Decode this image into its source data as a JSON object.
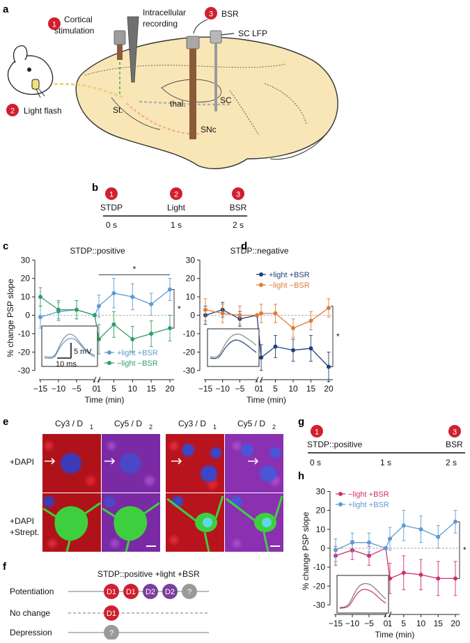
{
  "panel_a": {
    "label": "a",
    "step1_num": "1",
    "step1_text_l1": "Cortical",
    "step1_text_l2": "stimulation",
    "recording_l1": "Intracellular",
    "recording_l2": "recording",
    "step3_num": "3",
    "step3_text": "BSR",
    "sc_lfp": "SC LFP",
    "step2_num": "2",
    "step2_text": "Light flash",
    "region_st": "St.",
    "region_thal": "thal.",
    "region_sc": "SC",
    "region_snc": "SNc"
  },
  "panel_b": {
    "label": "b",
    "events": [
      {
        "num": "1",
        "name": "STDP",
        "time": "0 s"
      },
      {
        "num": "2",
        "name": "Light",
        "time": "1 s"
      },
      {
        "num": "3",
        "name": "BSR",
        "time": "2 s"
      }
    ]
  },
  "panel_c": {
    "label": "c",
    "inset_v": "5 mV",
    "inset_t": "10 ms",
    "sig": "*"
  },
  "panel_d": {
    "label": "d",
    "sig": "*"
  },
  "panel_e": {
    "label": "e",
    "col_headers": [
      "Cy3 / D",
      "Cy5 / D",
      "Cy3 / D",
      "Cy5 / D"
    ],
    "col_subs": [
      "1",
      "2",
      "1",
      "2"
    ],
    "row1": "+DAPI",
    "row2_l1": "+DAPI",
    "row2_l2": "+Strept."
  },
  "panel_f": {
    "label": "f",
    "title": "STDP::positive +light +BSR",
    "rows": [
      {
        "name": "Potentiation",
        "cells": [
          "D1",
          "D1",
          "D2",
          "D2",
          "?"
        ]
      },
      {
        "name": "No change",
        "cells": [
          "D1"
        ]
      },
      {
        "name": "Depression",
        "cells": [
          "?"
        ]
      }
    ]
  },
  "panel_g": {
    "label": "g",
    "ev1_num": "1",
    "ev1_name": "STDP::positive",
    "ev3_num": "3",
    "ev3_name": "BSR",
    "ticks": [
      "0 s",
      "1 s",
      "2 s"
    ]
  },
  "panel_h": {
    "label": "h",
    "sig": "*"
  },
  "colors": {
    "red": "#d0202f",
    "blue_light": "#5b9bd5",
    "green": "#2e9e6b",
    "navy": "#1f3f7a",
    "orange": "#e07b39",
    "magenta": "#d02e74",
    "purple": "#7b3f9e",
    "gray": "#9a9a9a"
  },
  "chart_data": [
    {
      "id": "c",
      "type": "line",
      "title": "STDP::positive",
      "xlabel": "Time (min)",
      "ylabel": "% change PSP slope",
      "xticks": [
        -15,
        -10,
        -5,
        0,
        1,
        5,
        10,
        15,
        20
      ],
      "yticks": [
        -30,
        -20,
        -10,
        0,
        10,
        20,
        30
      ],
      "ylim": [
        -35,
        30
      ],
      "series": [
        {
          "name": "+light +BSR",
          "color": "#5b9bd5",
          "x": [
            -15,
            -10,
            -5,
            0,
            1,
            5,
            10,
            15,
            20
          ],
          "y": [
            -1,
            2,
            3,
            0,
            5,
            12,
            10,
            6,
            14
          ],
          "err": [
            6,
            5,
            5,
            0,
            6,
            8,
            7,
            6,
            6
          ]
        },
        {
          "name": "−light −BSR",
          "color": "#2e9e6b",
          "x": [
            -15,
            -10,
            -5,
            0,
            1,
            5,
            10,
            15,
            20
          ],
          "y": [
            10,
            3,
            3,
            0,
            -13,
            -5,
            -13,
            -10,
            -7
          ],
          "err": [
            5,
            5,
            5,
            0,
            8,
            7,
            7,
            7,
            7
          ]
        }
      ],
      "annotation": "*"
    },
    {
      "id": "d",
      "type": "line",
      "title": "STDP::negative",
      "xlabel": "Time (min)",
      "ylabel": "",
      "xticks": [
        -15,
        -10,
        -5,
        0,
        1,
        5,
        10,
        15,
        20
      ],
      "yticks": [
        -30,
        -20,
        -10,
        0,
        10,
        20,
        30
      ],
      "ylim": [
        -35,
        30
      ],
      "series": [
        {
          "name": "+light +BSR",
          "color": "#1f3f7a",
          "x": [
            -15,
            -10,
            -5,
            0,
            1,
            5,
            10,
            15,
            20
          ],
          "y": [
            0,
            3,
            -2,
            0,
            -23,
            -17,
            -19,
            -18,
            -28
          ],
          "err": [
            5,
            4,
            4,
            0,
            7,
            6,
            6,
            7,
            8
          ]
        },
        {
          "name": "−light −BSR",
          "color": "#e07b39",
          "x": [
            -15,
            -10,
            -5,
            0,
            1,
            5,
            10,
            15,
            20
          ],
          "y": [
            3,
            1,
            0,
            0,
            1,
            1,
            -7,
            -3,
            4
          ],
          "err": [
            6,
            5,
            5,
            0,
            5,
            5,
            5,
            5,
            5
          ]
        }
      ]
    },
    {
      "id": "h",
      "type": "line",
      "title": "",
      "xlabel": "Time (min)",
      "ylabel": "% change PSP slope",
      "xticks": [
        -15,
        -10,
        -5,
        0,
        1,
        5,
        10,
        15,
        20
      ],
      "yticks": [
        -30,
        -20,
        -10,
        0,
        10,
        20,
        30
      ],
      "ylim": [
        -35,
        30
      ],
      "series": [
        {
          "name": "−light +BSR",
          "color": "#d02e74",
          "x": [
            -15,
            -10,
            -5,
            0,
            1,
            5,
            10,
            15,
            20
          ],
          "y": [
            -4,
            -1,
            -4,
            0,
            -16,
            -13,
            -14,
            -16,
            -16
          ],
          "err": [
            5,
            5,
            5,
            0,
            8,
            9,
            8,
            9,
            9
          ]
        },
        {
          "name": "+light +BSR",
          "color": "#5b9bd5",
          "x": [
            -15,
            -10,
            -5,
            0,
            1,
            5,
            10,
            15,
            20
          ],
          "y": [
            -1,
            3,
            3,
            0,
            5,
            12,
            10,
            6,
            14
          ],
          "err": [
            6,
            5,
            5,
            0,
            6,
            8,
            7,
            6,
            6
          ]
        }
      ]
    }
  ]
}
